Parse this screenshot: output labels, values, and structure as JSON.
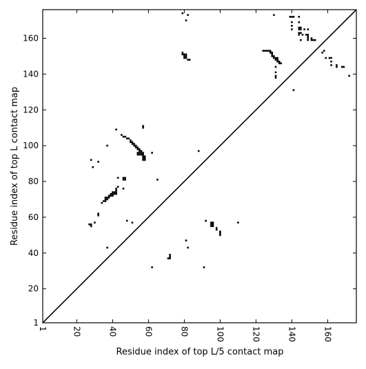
{
  "chart_data": {
    "type": "scatter",
    "marker": "square",
    "title": "",
    "xlabel": "Residue index of top L/5 contact map",
    "ylabel": "Residue index of top L contact map",
    "xlim": [
      1,
      176
    ],
    "ylim": [
      1,
      176
    ],
    "xticks": [
      1,
      20,
      40,
      60,
      80,
      100,
      120,
      140,
      160
    ],
    "yticks": [
      1,
      20,
      40,
      60,
      80,
      100,
      120,
      140,
      160
    ],
    "xtick_rotation": -90,
    "diagonal": {
      "from": [
        1,
        1
      ],
      "to": [
        176,
        176
      ]
    },
    "grid": false,
    "legend": "none",
    "colors": {
      "marker": "#000000",
      "line": "#000000",
      "background": "#ffffff"
    },
    "series": [
      {
        "label_region": "upper-left triangle (top L contact map)",
        "points": [
          [
            28,
            92
          ],
          [
            29,
            88
          ],
          [
            32,
            91
          ],
          [
            37,
            100
          ],
          [
            42,
            109
          ],
          [
            45,
            106
          ],
          [
            46,
            105
          ],
          [
            47,
            105
          ],
          [
            48,
            104
          ],
          [
            49,
            104
          ],
          [
            50,
            103
          ],
          [
            50,
            102
          ],
          [
            51,
            102
          ],
          [
            51,
            101
          ],
          [
            52,
            101
          ],
          [
            52,
            100
          ],
          [
            53,
            100
          ],
          [
            53,
            99
          ],
          [
            54,
            99
          ],
          [
            54,
            98
          ],
          [
            55,
            98
          ],
          [
            55,
            97
          ],
          [
            56,
            97
          ],
          [
            56,
            96
          ],
          [
            57,
            96
          ],
          [
            57,
            95
          ],
          [
            54,
            96
          ],
          [
            55,
            96
          ],
          [
            54,
            95
          ],
          [
            55,
            95
          ],
          [
            56,
            95
          ],
          [
            57,
            94
          ],
          [
            58,
            94
          ],
          [
            57,
            93
          ],
          [
            58,
            93
          ],
          [
            57,
            92
          ],
          [
            58,
            92
          ],
          [
            57,
            111
          ],
          [
            57,
            110
          ],
          [
            62,
            96
          ],
          [
            65,
            81
          ],
          [
            46,
            82
          ],
          [
            46,
            81
          ],
          [
            47,
            82
          ],
          [
            47,
            81
          ],
          [
            43,
            82
          ],
          [
            43,
            77
          ],
          [
            42,
            76
          ],
          [
            42,
            75
          ],
          [
            42,
            74
          ],
          [
            42,
            73
          ],
          [
            46,
            76
          ],
          [
            40,
            74
          ],
          [
            41,
            74
          ],
          [
            40,
            73
          ],
          [
            41,
            73
          ],
          [
            39,
            73
          ],
          [
            39,
            72
          ],
          [
            40,
            72
          ],
          [
            38,
            72
          ],
          [
            38,
            71
          ],
          [
            36,
            71
          ],
          [
            37,
            71
          ],
          [
            36,
            70
          ],
          [
            37,
            70
          ],
          [
            35,
            69
          ],
          [
            36,
            69
          ],
          [
            34,
            68
          ],
          [
            32,
            62
          ],
          [
            32,
            61
          ],
          [
            30,
            57
          ],
          [
            27,
            56
          ],
          [
            28,
            56
          ],
          [
            28,
            55
          ],
          [
            37,
            43
          ],
          [
            48,
            58
          ],
          [
            51,
            57
          ]
        ]
      },
      {
        "label_region": "lower-right triangle (top L/5 contact map)",
        "points": [
          [
            79,
            152
          ],
          [
            79,
            151
          ],
          [
            80,
            151
          ],
          [
            81,
            151
          ],
          [
            80,
            150
          ],
          [
            81,
            150
          ],
          [
            80,
            149
          ],
          [
            81,
            149
          ],
          [
            82,
            148
          ],
          [
            83,
            148
          ],
          [
            79,
            174
          ],
          [
            82,
            173
          ],
          [
            81,
            170
          ],
          [
            124,
            153
          ],
          [
            125,
            153
          ],
          [
            126,
            153
          ],
          [
            127,
            153
          ],
          [
            128,
            153
          ],
          [
            128,
            152
          ],
          [
            129,
            152
          ],
          [
            129,
            151
          ],
          [
            129,
            150
          ],
          [
            130,
            150
          ],
          [
            130,
            149
          ],
          [
            131,
            149
          ],
          [
            132,
            149
          ],
          [
            131,
            148
          ],
          [
            132,
            148
          ],
          [
            132,
            147
          ],
          [
            133,
            147
          ],
          [
            133,
            146
          ],
          [
            134,
            146
          ],
          [
            131,
            144
          ],
          [
            131,
            141
          ],
          [
            131,
            139
          ],
          [
            131,
            138
          ],
          [
            130,
            173
          ],
          [
            139,
            172
          ],
          [
            140,
            172
          ],
          [
            141,
            172
          ],
          [
            144,
            172
          ],
          [
            140,
            169
          ],
          [
            144,
            169
          ],
          [
            140,
            167
          ],
          [
            144,
            166
          ],
          [
            145,
            166
          ],
          [
            140,
            165
          ],
          [
            144,
            165
          ],
          [
            145,
            165
          ],
          [
            147,
            165
          ],
          [
            149,
            165
          ],
          [
            144,
            163
          ],
          [
            145,
            163
          ],
          [
            144,
            162
          ],
          [
            146,
            162
          ],
          [
            148,
            162
          ],
          [
            149,
            162
          ],
          [
            149,
            161
          ],
          [
            149,
            160
          ],
          [
            151,
            160
          ],
          [
            149,
            159
          ],
          [
            151,
            159
          ],
          [
            152,
            159
          ],
          [
            153,
            159
          ],
          [
            145,
            159
          ],
          [
            141,
            131
          ],
          [
            158,
            153
          ],
          [
            157,
            152
          ],
          [
            159,
            149
          ],
          [
            161,
            149
          ],
          [
            162,
            149
          ],
          [
            162,
            147
          ],
          [
            162,
            145
          ],
          [
            165,
            145
          ],
          [
            165,
            144
          ],
          [
            168,
            144
          ],
          [
            169,
            144
          ],
          [
            172,
            139
          ],
          [
            95,
            57
          ],
          [
            96,
            57
          ],
          [
            95,
            56
          ],
          [
            96,
            56
          ],
          [
            95,
            55
          ],
          [
            96,
            55
          ],
          [
            98,
            54
          ],
          [
            98,
            53
          ],
          [
            100,
            52
          ],
          [
            100,
            51
          ],
          [
            100,
            50
          ],
          [
            92,
            58
          ],
          [
            110,
            57
          ],
          [
            81,
            47
          ],
          [
            82,
            43
          ],
          [
            72,
            39
          ],
          [
            72,
            38
          ],
          [
            71,
            37
          ],
          [
            72,
            37
          ],
          [
            62,
            32
          ],
          [
            91,
            32
          ],
          [
            88,
            97
          ]
        ]
      }
    ]
  }
}
